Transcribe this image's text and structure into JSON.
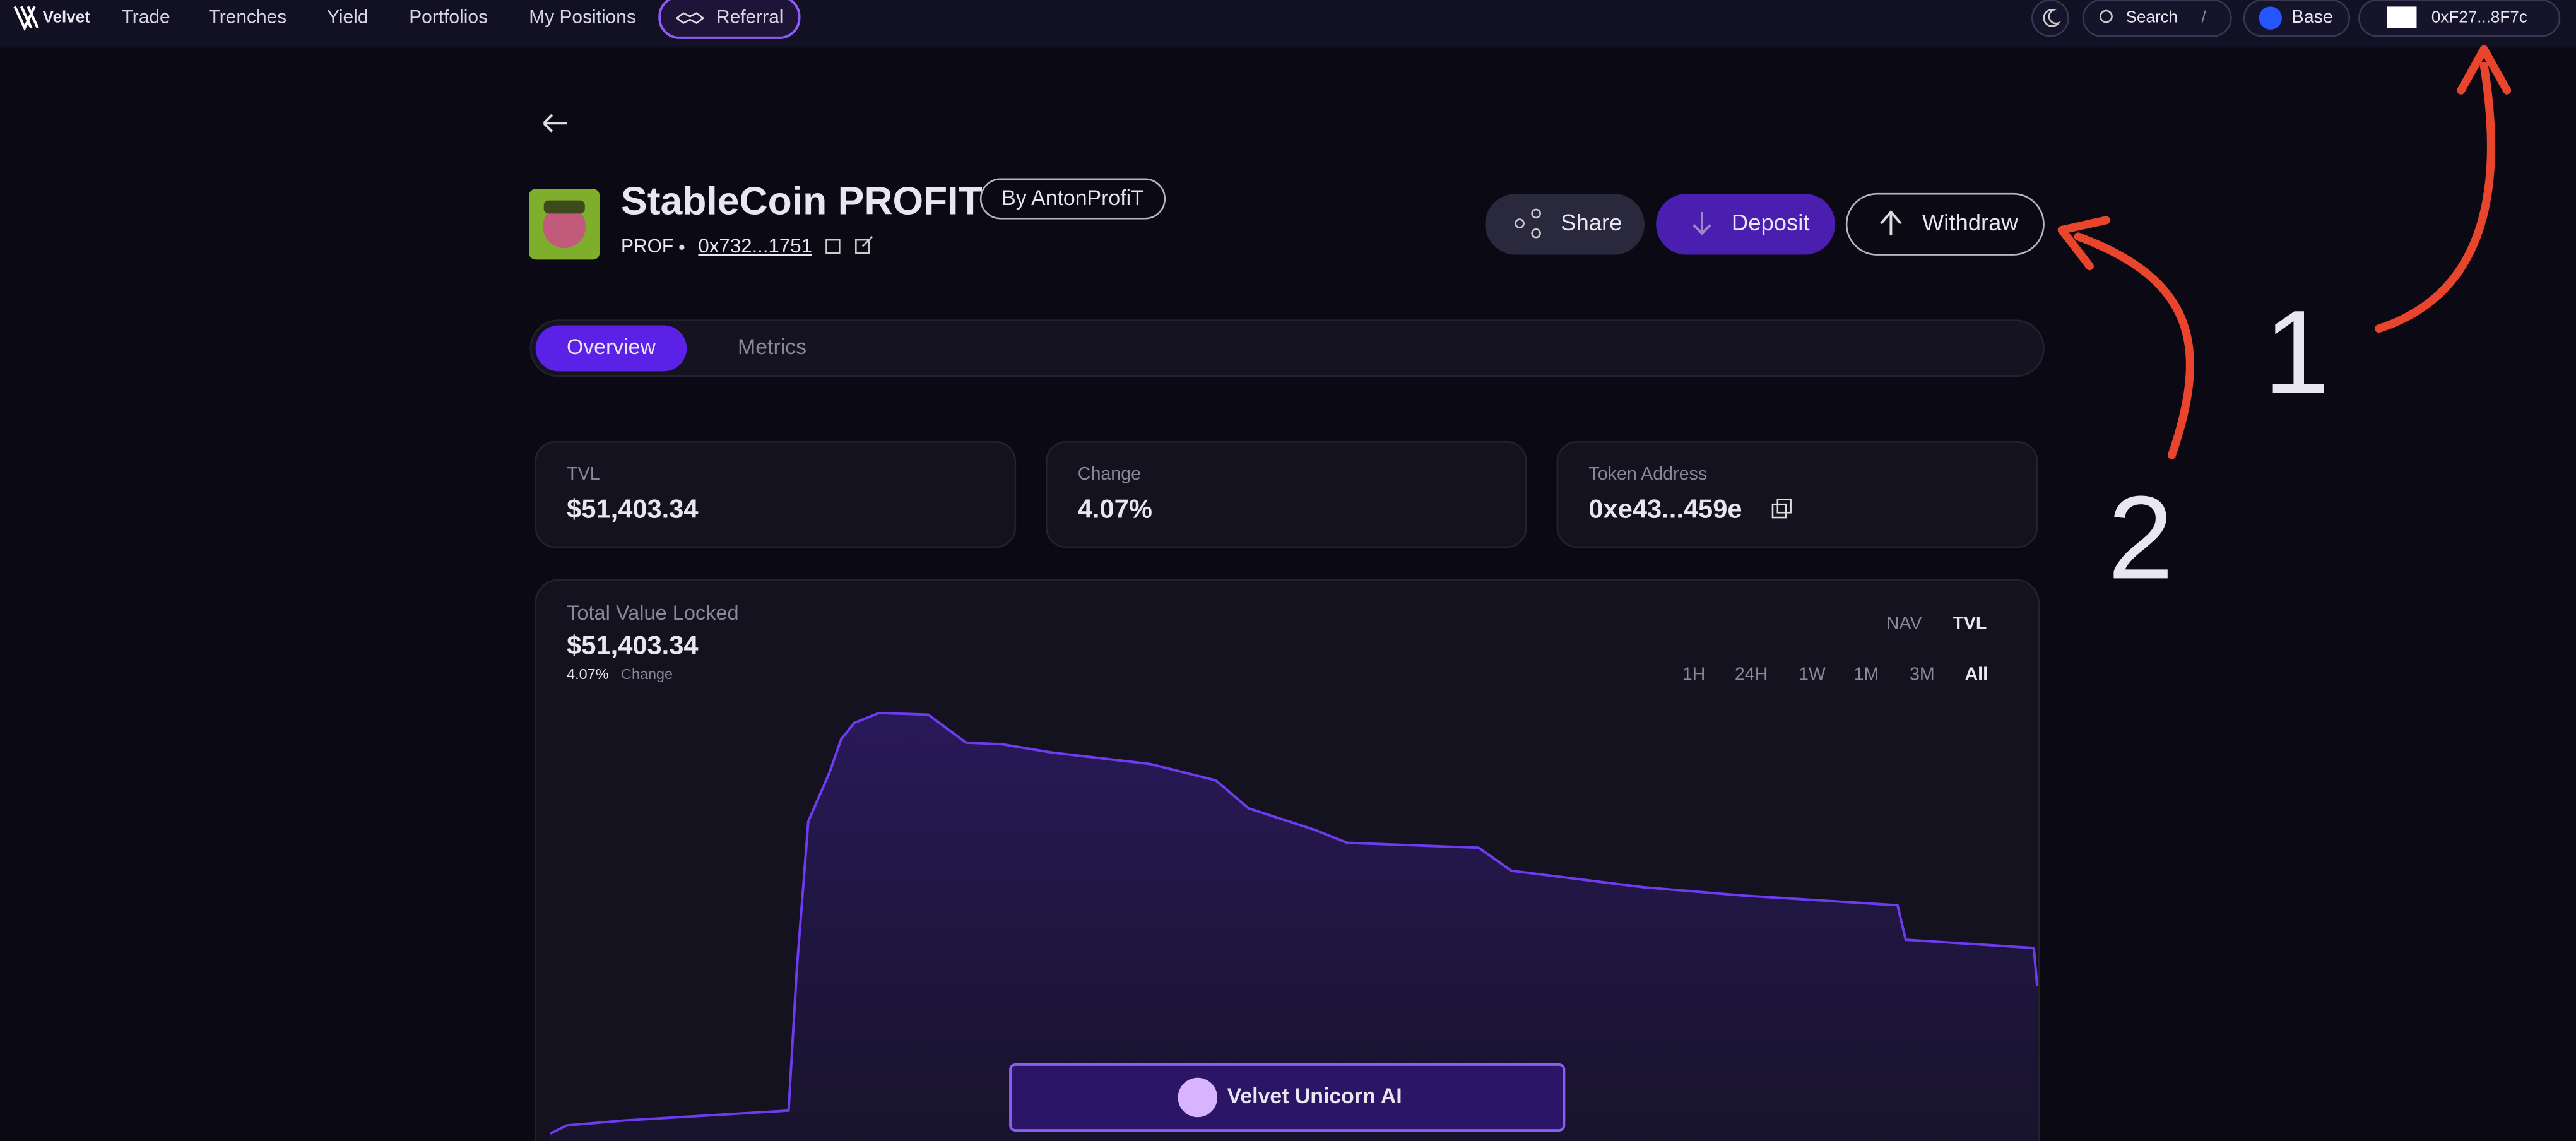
{
  "nav": {
    "logo": "Velvet",
    "items": [
      "Trade",
      "Trenches",
      "Yield",
      "Portfolios",
      "My Positions"
    ],
    "referral": "Referral",
    "search": "Search",
    "search_key": "/",
    "network": "Base",
    "wallet": "0xF27...8F7c"
  },
  "header": {
    "title": "StableCoin PROFIT",
    "by": "By AntonProfiT",
    "symbol": "PROF",
    "address": "0x732...1751"
  },
  "actions": [
    "Share",
    "Deposit",
    "Withdraw"
  ],
  "tabs": [
    "Overview",
    "Metrics"
  ],
  "stats": [
    {
      "label": "TVL",
      "value": "$51,403.34"
    },
    {
      "label": "Change",
      "value": "4.07%"
    },
    {
      "label": "Token Address",
      "value": "0xe43...459e"
    }
  ],
  "chart_panel": {
    "title": "Total Value Locked",
    "value": "$51,403.34",
    "change": "4.07%",
    "change_label": "Change",
    "modes": [
      "NAV",
      "TVL"
    ],
    "ranges": [
      "1H",
      "24H",
      "1W",
      "1M",
      "3M",
      "All"
    ]
  },
  "assistant": "Velvet Unicorn AI",
  "annotations": [
    "1",
    "2"
  ]
}
